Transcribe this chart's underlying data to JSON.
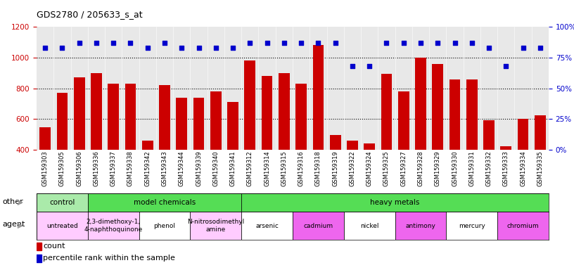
{
  "title": "GDS2780 / 205633_s_at",
  "samples": [
    "GSM159303",
    "GSM159305",
    "GSM159306",
    "GSM159336",
    "GSM159337",
    "GSM159338",
    "GSM159342",
    "GSM159343",
    "GSM159344",
    "GSM159339",
    "GSM159340",
    "GSM159341",
    "GSM159312",
    "GSM159314",
    "GSM159315",
    "GSM159316",
    "GSM159318",
    "GSM159319",
    "GSM159322",
    "GSM159324",
    "GSM159325",
    "GSM159327",
    "GSM159328",
    "GSM159329",
    "GSM159330",
    "GSM159331",
    "GSM159332",
    "GSM159333",
    "GSM159334",
    "GSM159335"
  ],
  "counts": [
    545,
    770,
    870,
    900,
    830,
    830,
    460,
    820,
    740,
    740,
    780,
    710,
    980,
    880,
    900,
    830,
    1080,
    495,
    460,
    440,
    895,
    780,
    1000,
    960,
    855,
    855,
    590,
    425,
    600,
    625
  ],
  "percentiles": [
    83,
    83,
    87,
    87,
    87,
    87,
    83,
    87,
    83,
    83,
    83,
    83,
    87,
    87,
    87,
    87,
    87,
    87,
    68,
    68,
    87,
    87,
    87,
    87,
    87,
    87,
    83,
    68,
    83,
    83
  ],
  "bar_color": "#cc0000",
  "dot_color": "#0000cc",
  "ylim_left": [
    400,
    1200
  ],
  "ylim_right": [
    0,
    100
  ],
  "yticks_left": [
    400,
    600,
    800,
    1000,
    1200
  ],
  "yticks_right": [
    0,
    25,
    50,
    75,
    100
  ],
  "grid_values": [
    600,
    800,
    1000
  ],
  "bg_color": "#e8e8e8",
  "other_groups": [
    {
      "label": "control",
      "start": 0,
      "end": 3,
      "color": "#aaeaaa"
    },
    {
      "label": "model chemicals",
      "start": 3,
      "end": 12,
      "color": "#55dd55"
    },
    {
      "label": "heavy metals",
      "start": 12,
      "end": 30,
      "color": "#55dd55"
    }
  ],
  "agent_groups": [
    {
      "label": "untreated",
      "start": 0,
      "end": 3,
      "color": "#ffccff"
    },
    {
      "label": "2,3-dimethoxy-1,\n4-naphthoquinone",
      "start": 3,
      "end": 6,
      "color": "#ffccff"
    },
    {
      "label": "phenol",
      "start": 6,
      "end": 9,
      "color": "#ffffff"
    },
    {
      "label": "N-nitrosodimethyl\namine",
      "start": 9,
      "end": 12,
      "color": "#ffccff"
    },
    {
      "label": "arsenic",
      "start": 12,
      "end": 15,
      "color": "#ffffff"
    },
    {
      "label": "cadmium",
      "start": 15,
      "end": 18,
      "color": "#ee66ee"
    },
    {
      "label": "nickel",
      "start": 18,
      "end": 21,
      "color": "#ffffff"
    },
    {
      "label": "antimony",
      "start": 21,
      "end": 24,
      "color": "#ee66ee"
    },
    {
      "label": "mercury",
      "start": 24,
      "end": 27,
      "color": "#ffffff"
    },
    {
      "label": "chromium",
      "start": 27,
      "end": 30,
      "color": "#ee66ee"
    }
  ],
  "legend_count_color": "#cc0000",
  "legend_dot_color": "#0000cc"
}
